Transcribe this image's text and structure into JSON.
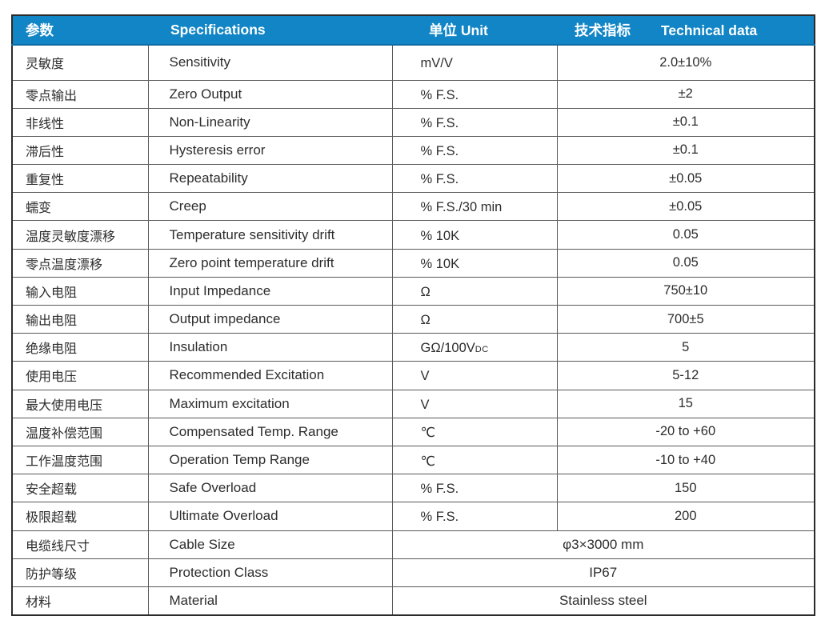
{
  "header": {
    "param": "参数",
    "spec": "Specifications",
    "unit": "单位 Unit",
    "tech_zh": "技术指标",
    "tech_en": "Technical data"
  },
  "colors": {
    "header_bg": "#1185c6",
    "header_text": "#ffffff",
    "body_text": "#2d2d2d",
    "grid_line": "#5a5a5a",
    "outer_border": "#2b2b2b"
  },
  "rows": [
    {
      "param": "灵敏度",
      "spec": "Sensitivity",
      "unit": "mV/V",
      "value": "2.0±10%"
    },
    {
      "param": "零点输出",
      "spec": "Zero Output",
      "unit": "% F.S.",
      "value": "±2"
    },
    {
      "param": "非线性",
      "spec": "Non-Linearity",
      "unit": "% F.S.",
      "value": "±0.1"
    },
    {
      "param": "滞后性",
      "spec": "Hysteresis error",
      "unit": "% F.S.",
      "value": "±0.1"
    },
    {
      "param": "重复性",
      "spec": "Repeatability",
      "unit": "% F.S.",
      "value": "±0.05"
    },
    {
      "param": "蠕变",
      "spec": "Creep",
      "unit": "% F.S./30 min",
      "value": "±0.05"
    },
    {
      "param": "温度灵敏度漂移",
      "spec": "Temperature sensitivity drift",
      "unit": "% 10K",
      "value": "0.05"
    },
    {
      "param": "零点温度漂移",
      "spec": "Zero point temperature drift",
      "unit": "% 10K",
      "value": "0.05"
    },
    {
      "param": "输入电阻",
      "spec": "Input Impedance",
      "unit": "Ω",
      "value": "750±10"
    },
    {
      "param": "输出电阻",
      "spec": "Output impedance",
      "unit": "Ω",
      "value": "700±5"
    },
    {
      "param": "绝缘电阻",
      "spec": "Insulation",
      "unit": "GΩ/100V",
      "unit_sub": "DC",
      "value": "5"
    },
    {
      "param": "使用电压",
      "spec": "Recommended Excitation",
      "unit": "V",
      "value": "5-12"
    },
    {
      "param": "最大使用电压",
      "spec": "Maximum excitation",
      "unit": "V",
      "value": "15"
    },
    {
      "param": "温度补偿范围",
      "spec": "Compensated Temp. Range",
      "unit": "℃",
      "value": "-20 to +60"
    },
    {
      "param": "工作温度范围",
      "spec": "Operation Temp Range",
      "unit": "℃",
      "value": "-10 to +40"
    },
    {
      "param": "安全超载",
      "spec": "Safe Overload",
      "unit": "% F.S.",
      "value": "150"
    },
    {
      "param": "极限超载",
      "spec": "Ultimate Overload",
      "unit": "% F.S.",
      "value": "200"
    },
    {
      "param": "电缆线尺寸",
      "spec": "Cable Size",
      "merged_value": "φ3×3000 mm"
    },
    {
      "param": "防护等级",
      "spec": "Protection Class",
      "merged_value": "IP67"
    },
    {
      "param": "材料",
      "spec": "Material",
      "merged_value": "Stainless steel"
    }
  ]
}
